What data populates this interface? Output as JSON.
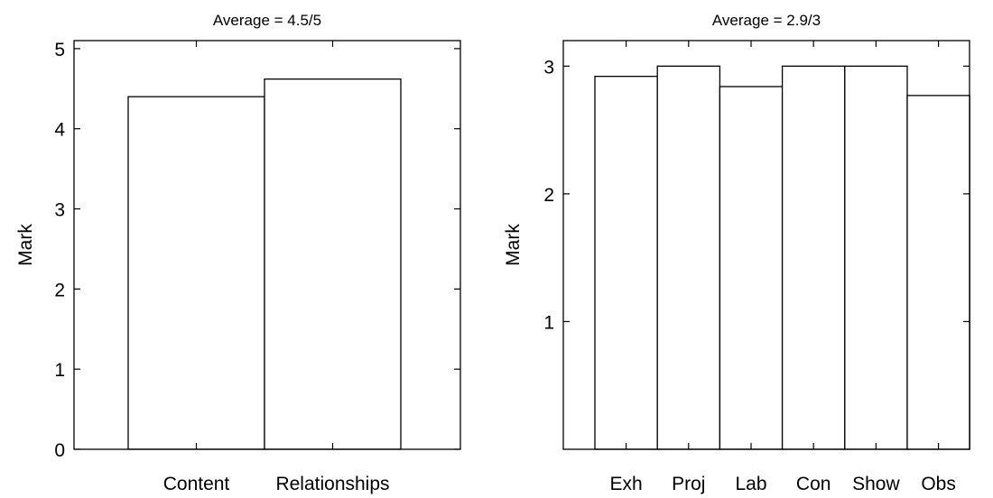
{
  "chart_data": [
    {
      "type": "bar",
      "title": "Average = 4.5/5",
      "ylabel": "Mark",
      "xlabel": "",
      "ylim": [
        0,
        5.1
      ],
      "categories": [
        "Content",
        "Relationships"
      ],
      "values": [
        4.4,
        4.62
      ],
      "yticks": [
        0,
        1,
        2,
        3,
        4,
        5
      ],
      "grid": false,
      "bar_fill": "#ffffff",
      "bar_stroke": "#000000"
    },
    {
      "type": "bar",
      "title": "Average = 2.9/3",
      "ylabel": "Mark",
      "xlabel": "",
      "ylim": [
        0,
        3.2
      ],
      "categories": [
        "Exh",
        "Proj",
        "Lab",
        "Con",
        "Show",
        "Obs"
      ],
      "values": [
        2.92,
        3.0,
        2.84,
        3.0,
        3.0,
        2.77
      ],
      "yticks": [
        1,
        2,
        3
      ],
      "grid": false,
      "bar_fill": "#ffffff",
      "bar_stroke": "#000000"
    }
  ]
}
